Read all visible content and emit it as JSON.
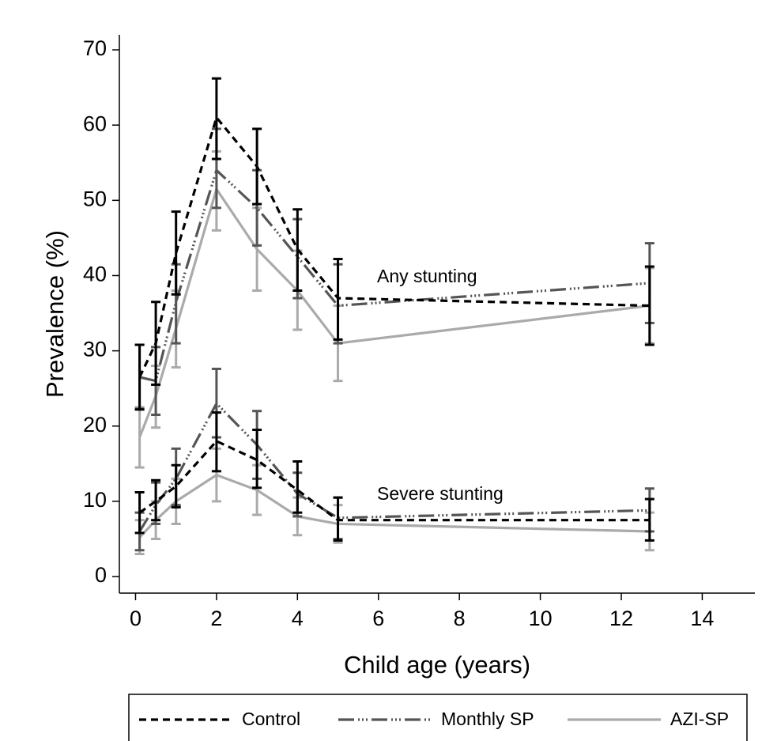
{
  "chart_data": {
    "type": "line",
    "xlabel": "Child age (years)",
    "ylabel": "Prevalence (%)",
    "x": [
      0.1,
      0.5,
      1,
      2,
      3,
      4,
      5,
      12.7
    ],
    "xlim": [
      -0.4,
      15.3
    ],
    "xticks": [
      0,
      2,
      4,
      6,
      8,
      10,
      12,
      14
    ],
    "ylim": [
      -2.2,
      72
    ],
    "yticks": [
      0,
      10,
      20,
      30,
      40,
      50,
      60,
      70
    ],
    "annotations": [
      "Any stunting",
      "Severe stunting"
    ],
    "series": [
      {
        "name": "Control",
        "color": "#000000",
        "dash": "9,6",
        "lines": [
          {
            "values": [
              26.5,
              31,
              43,
              61,
              54.5,
              43.5,
              37,
              36
            ],
            "lower": [
              22.2,
              25.5,
              37.5,
              55.5,
              49.5,
              38,
              31.5,
              30.8
            ],
            "upper": [
              30.8,
              36.5,
              48.5,
              66.2,
              59.5,
              48.8,
              42.2,
              41.2
            ]
          },
          {
            "values": [
              8.5,
              10,
              12,
              18,
              15.5,
              11.5,
              7.5,
              7.5
            ],
            "lower": [
              5.8,
              7.5,
              9.2,
              14,
              11.8,
              8.5,
              4.8,
              4.8
            ],
            "upper": [
              11.2,
              12.8,
              14.8,
              21.8,
              19.5,
              15.3,
              10.5,
              10.3
            ]
          }
        ]
      },
      {
        "name": "Monthly SP",
        "color": "#555555",
        "dash": "20,5,2,3,2,3,2,5",
        "lines": [
          {
            "values": [
              26.5,
              26,
              36.5,
              54,
              49,
              42.5,
              36,
              39
            ],
            "lower": [
              22.3,
              21.5,
              31,
              49,
              44,
              37,
              31,
              33.7
            ],
            "upper": [
              30.8,
              30.5,
              41.5,
              59.5,
              54,
              47.5,
              41.5,
              44.3
            ]
          },
          {
            "values": [
              6,
              9.5,
              13,
              23,
              17.5,
              11,
              7.8,
              8.8
            ],
            "lower": [
              3.5,
              7,
              9.5,
              18.5,
              13,
              8,
              5,
              6
            ],
            "upper": [
              8.5,
              12.5,
              17,
              27.6,
              22,
              13.8,
              10.5,
              11.7
            ]
          }
        ]
      },
      {
        "name": "AZI-SP",
        "color": "#aaaaaa",
        "dash": "none",
        "lines": [
          {
            "values": [
              18.5,
              24,
              33,
              51.5,
              43.5,
              38,
              31,
              36
            ],
            "lower": [
              14.5,
              19.8,
              27.8,
              46,
              38,
              32.8,
              26,
              31
            ],
            "upper": [
              22.5,
              28,
              38,
              56.5,
              49,
              43.3,
              36,
              41
            ]
          },
          {
            "values": [
              5.2,
              7.5,
              10,
              13.5,
              11.5,
              8,
              7,
              6
            ],
            "lower": [
              3,
              5,
              7,
              10,
              8.2,
              5.5,
              4.5,
              3.5
            ],
            "upper": [
              7.5,
              10,
              13,
              17,
              14.8,
              10.5,
              9.5,
              8.5
            ]
          }
        ]
      }
    ]
  }
}
